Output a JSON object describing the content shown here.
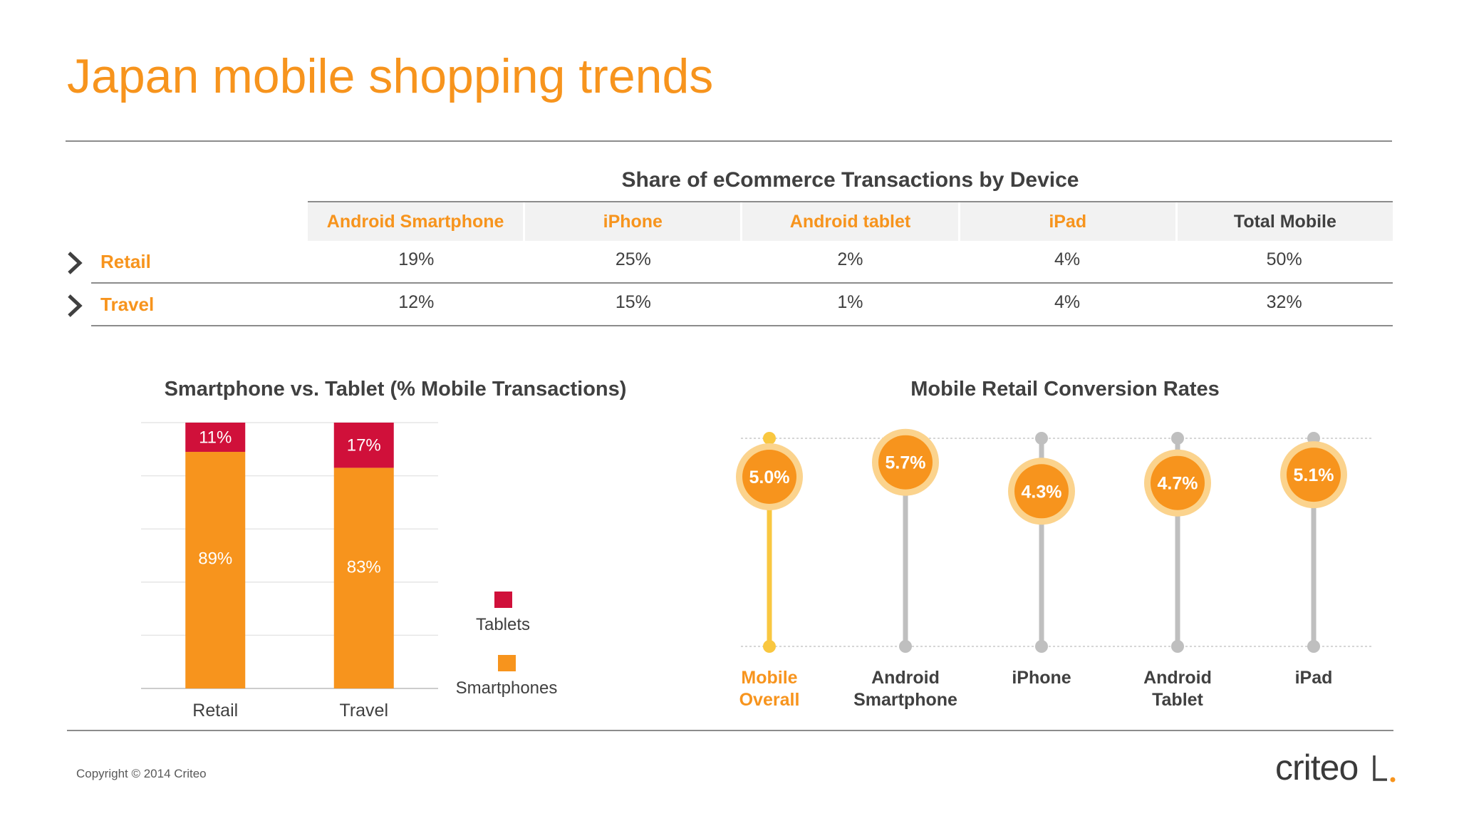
{
  "title": "Japan mobile shopping trends",
  "table": {
    "title": "Share of eCommerce Transactions by Device",
    "columns": [
      "Android Smartphone",
      "iPhone",
      "Android tablet",
      "iPad",
      "Total Mobile"
    ],
    "rows": [
      {
        "label": "Retail",
        "values": [
          "19%",
          "25%",
          "2%",
          "4%",
          "50%"
        ]
      },
      {
        "label": "Travel",
        "values": [
          "12%",
          "15%",
          "1%",
          "4%",
          "32%"
        ]
      }
    ]
  },
  "chart_data": [
    {
      "type": "bar",
      "stacked": true,
      "title": "Smartphone vs. Tablet (% Mobile Transactions)",
      "categories": [
        "Retail",
        "Travel"
      ],
      "series": [
        {
          "name": "Smartphones",
          "values": [
            89,
            83
          ],
          "labels": [
            "89%",
            "83%"
          ],
          "color": "#f7941d"
        },
        {
          "name": "Tablets",
          "values": [
            11,
            17
          ],
          "labels": [
            "11%",
            "17%"
          ],
          "color": "#d0103a"
        }
      ],
      "ylim": [
        0,
        100
      ],
      "grid": true,
      "legend": [
        "Tablets",
        "Smartphones"
      ],
      "legend_position": "right"
    },
    {
      "type": "scatter",
      "subtype": "lollipop",
      "title": "Mobile Retail Conversion Rates",
      "categories": [
        "Mobile Overall",
        "Android Smartphone",
        "iPhone",
        "Android Tablet",
        "iPad"
      ],
      "category_lines": [
        [
          "Mobile",
          "Overall"
        ],
        [
          "Android",
          "Smartphone"
        ],
        [
          "iPhone"
        ],
        [
          "Android",
          "Tablet"
        ],
        [
          "iPad"
        ]
      ],
      "values": [
        5.0,
        5.7,
        4.3,
        4.7,
        5.1
      ],
      "labels": [
        "5.0%",
        "5.7%",
        "4.3%",
        "4.7%",
        "5.1%"
      ],
      "highlight_index": 0,
      "colors": {
        "bubble": "#f7941d",
        "halo": "#fbd38d",
        "stem": "#bfbfbf",
        "highlight_stem": "#f9c740"
      }
    }
  ],
  "footer": {
    "copyright": "Copyright © 2014 Criteo",
    "brand": "criteo"
  },
  "colors": {
    "accent": "#f7941d",
    "tablet": "#d0103a",
    "text": "#404040"
  }
}
